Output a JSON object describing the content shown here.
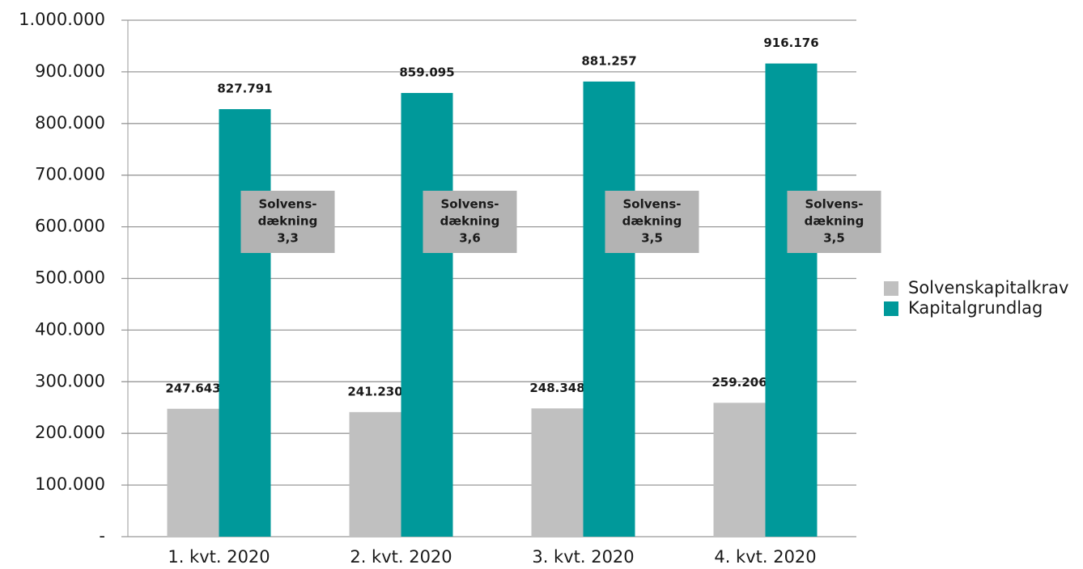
{
  "chart_data": {
    "type": "bar",
    "categories": [
      "1. kvt. 2020",
      "2. kvt. 2020",
      "3. kvt. 2020",
      "4. kvt. 2020"
    ],
    "series": [
      {
        "name": "Solvenskapitalkrav",
        "color": "#c0c0c0",
        "values": [
          247643,
          241230,
          248348,
          259206
        ],
        "value_labels": [
          "247.643",
          "241.230",
          "248.348",
          "259.206"
        ]
      },
      {
        "name": "Kapitalgrundlag",
        "color": "#00999a",
        "values": [
          827791,
          859095,
          881257,
          916176
        ],
        "value_labels": [
          "827.791",
          "859.095",
          "881.257",
          "916.176"
        ]
      }
    ],
    "annotations": [
      {
        "lines": [
          "Solvens-",
          "dækning",
          "3,3"
        ]
      },
      {
        "lines": [
          "Solvens-",
          "dækning",
          "3,6"
        ]
      },
      {
        "lines": [
          "Solvens-",
          "dækning",
          "3,5"
        ]
      },
      {
        "lines": [
          "Solvens-",
          "dækning",
          "3,5"
        ]
      }
    ],
    "ylim": [
      0,
      1000000
    ],
    "yticks": [
      {
        "value": 0,
        "label": "-"
      },
      {
        "value": 100000,
        "label": "100.000"
      },
      {
        "value": 200000,
        "label": "200.000"
      },
      {
        "value": 300000,
        "label": "300.000"
      },
      {
        "value": 400000,
        "label": "400.000"
      },
      {
        "value": 500000,
        "label": "500.000"
      },
      {
        "value": 600000,
        "label": "600.000"
      },
      {
        "value": 700000,
        "label": "700.000"
      },
      {
        "value": 800000,
        "label": "800.000"
      },
      {
        "value": 900000,
        "label": "900.000"
      },
      {
        "value": 1000000,
        "label": "1.000.000"
      }
    ],
    "grid": true,
    "legend": "right"
  }
}
